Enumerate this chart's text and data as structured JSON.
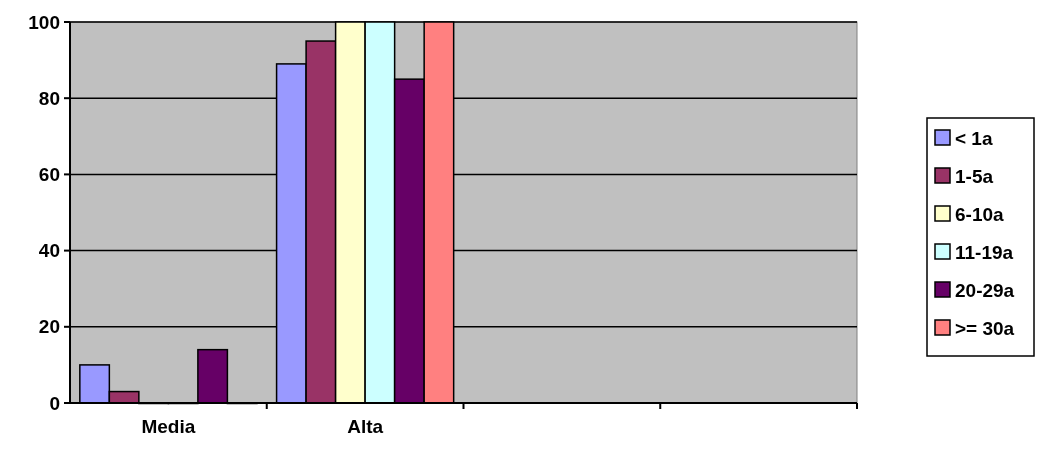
{
  "chart_data": {
    "type": "bar",
    "categories": [
      "Media",
      "Alta",
      null,
      null
    ],
    "series": [
      {
        "name": "< 1a",
        "color": "#9999ff",
        "values": [
          10,
          89,
          null,
          null
        ]
      },
      {
        "name": "1-5a",
        "color": "#993366",
        "values": [
          3,
          95,
          null,
          null
        ]
      },
      {
        "name": "6-10a",
        "color": "#ffffcc",
        "values": [
          0,
          100,
          null,
          null
        ]
      },
      {
        "name": "11-19a",
        "color": "#ccffff",
        "values": [
          0,
          100,
          null,
          null
        ]
      },
      {
        "name": "20-29a",
        "color": "#660066",
        "values": [
          14,
          85,
          null,
          null
        ]
      },
      {
        "name": ">= 30a",
        "color": "#ff8080",
        "values": [
          0,
          100,
          null,
          null
        ]
      }
    ],
    "ylim": [
      0,
      100
    ],
    "yticks": [
      0,
      20,
      40,
      60,
      80,
      100
    ],
    "grid": "y",
    "legend": "right"
  }
}
